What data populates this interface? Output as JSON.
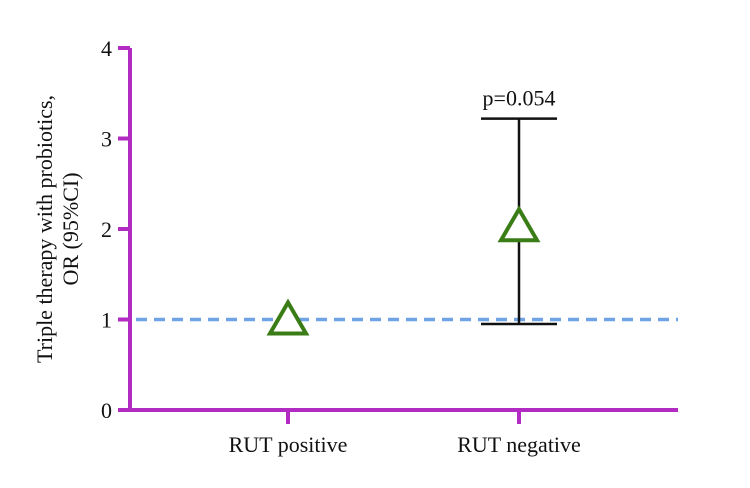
{
  "chart_data": {
    "type": "scatter",
    "title": "",
    "xlabel": "",
    "ylabel_lines": [
      "Triple therapy with probiotics,",
      "OR (95%CI)"
    ],
    "categories": [
      "RUT positive",
      "RUT negative"
    ],
    "points": [
      {
        "category": "RUT positive",
        "value": 1.0,
        "ci_low": null,
        "ci_high": null,
        "annotation": ""
      },
      {
        "category": "RUT negative",
        "value": 2.03,
        "ci_low": 0.95,
        "ci_high": 3.22,
        "annotation": "p=0.054"
      }
    ],
    "ylim": [
      0,
      4
    ],
    "yticks": [
      "0",
      "1",
      "2",
      "3",
      "4"
    ],
    "reference_line": {
      "value": 1,
      "style": "dashed"
    },
    "marker": "triangle-open",
    "grid": false,
    "legend": "none"
  },
  "colors": {
    "axis": "#B22BC2",
    "marker": "#3A7D16",
    "reference_line": "#6FA3E6",
    "errorbar": "#111111",
    "text": "#111111"
  }
}
